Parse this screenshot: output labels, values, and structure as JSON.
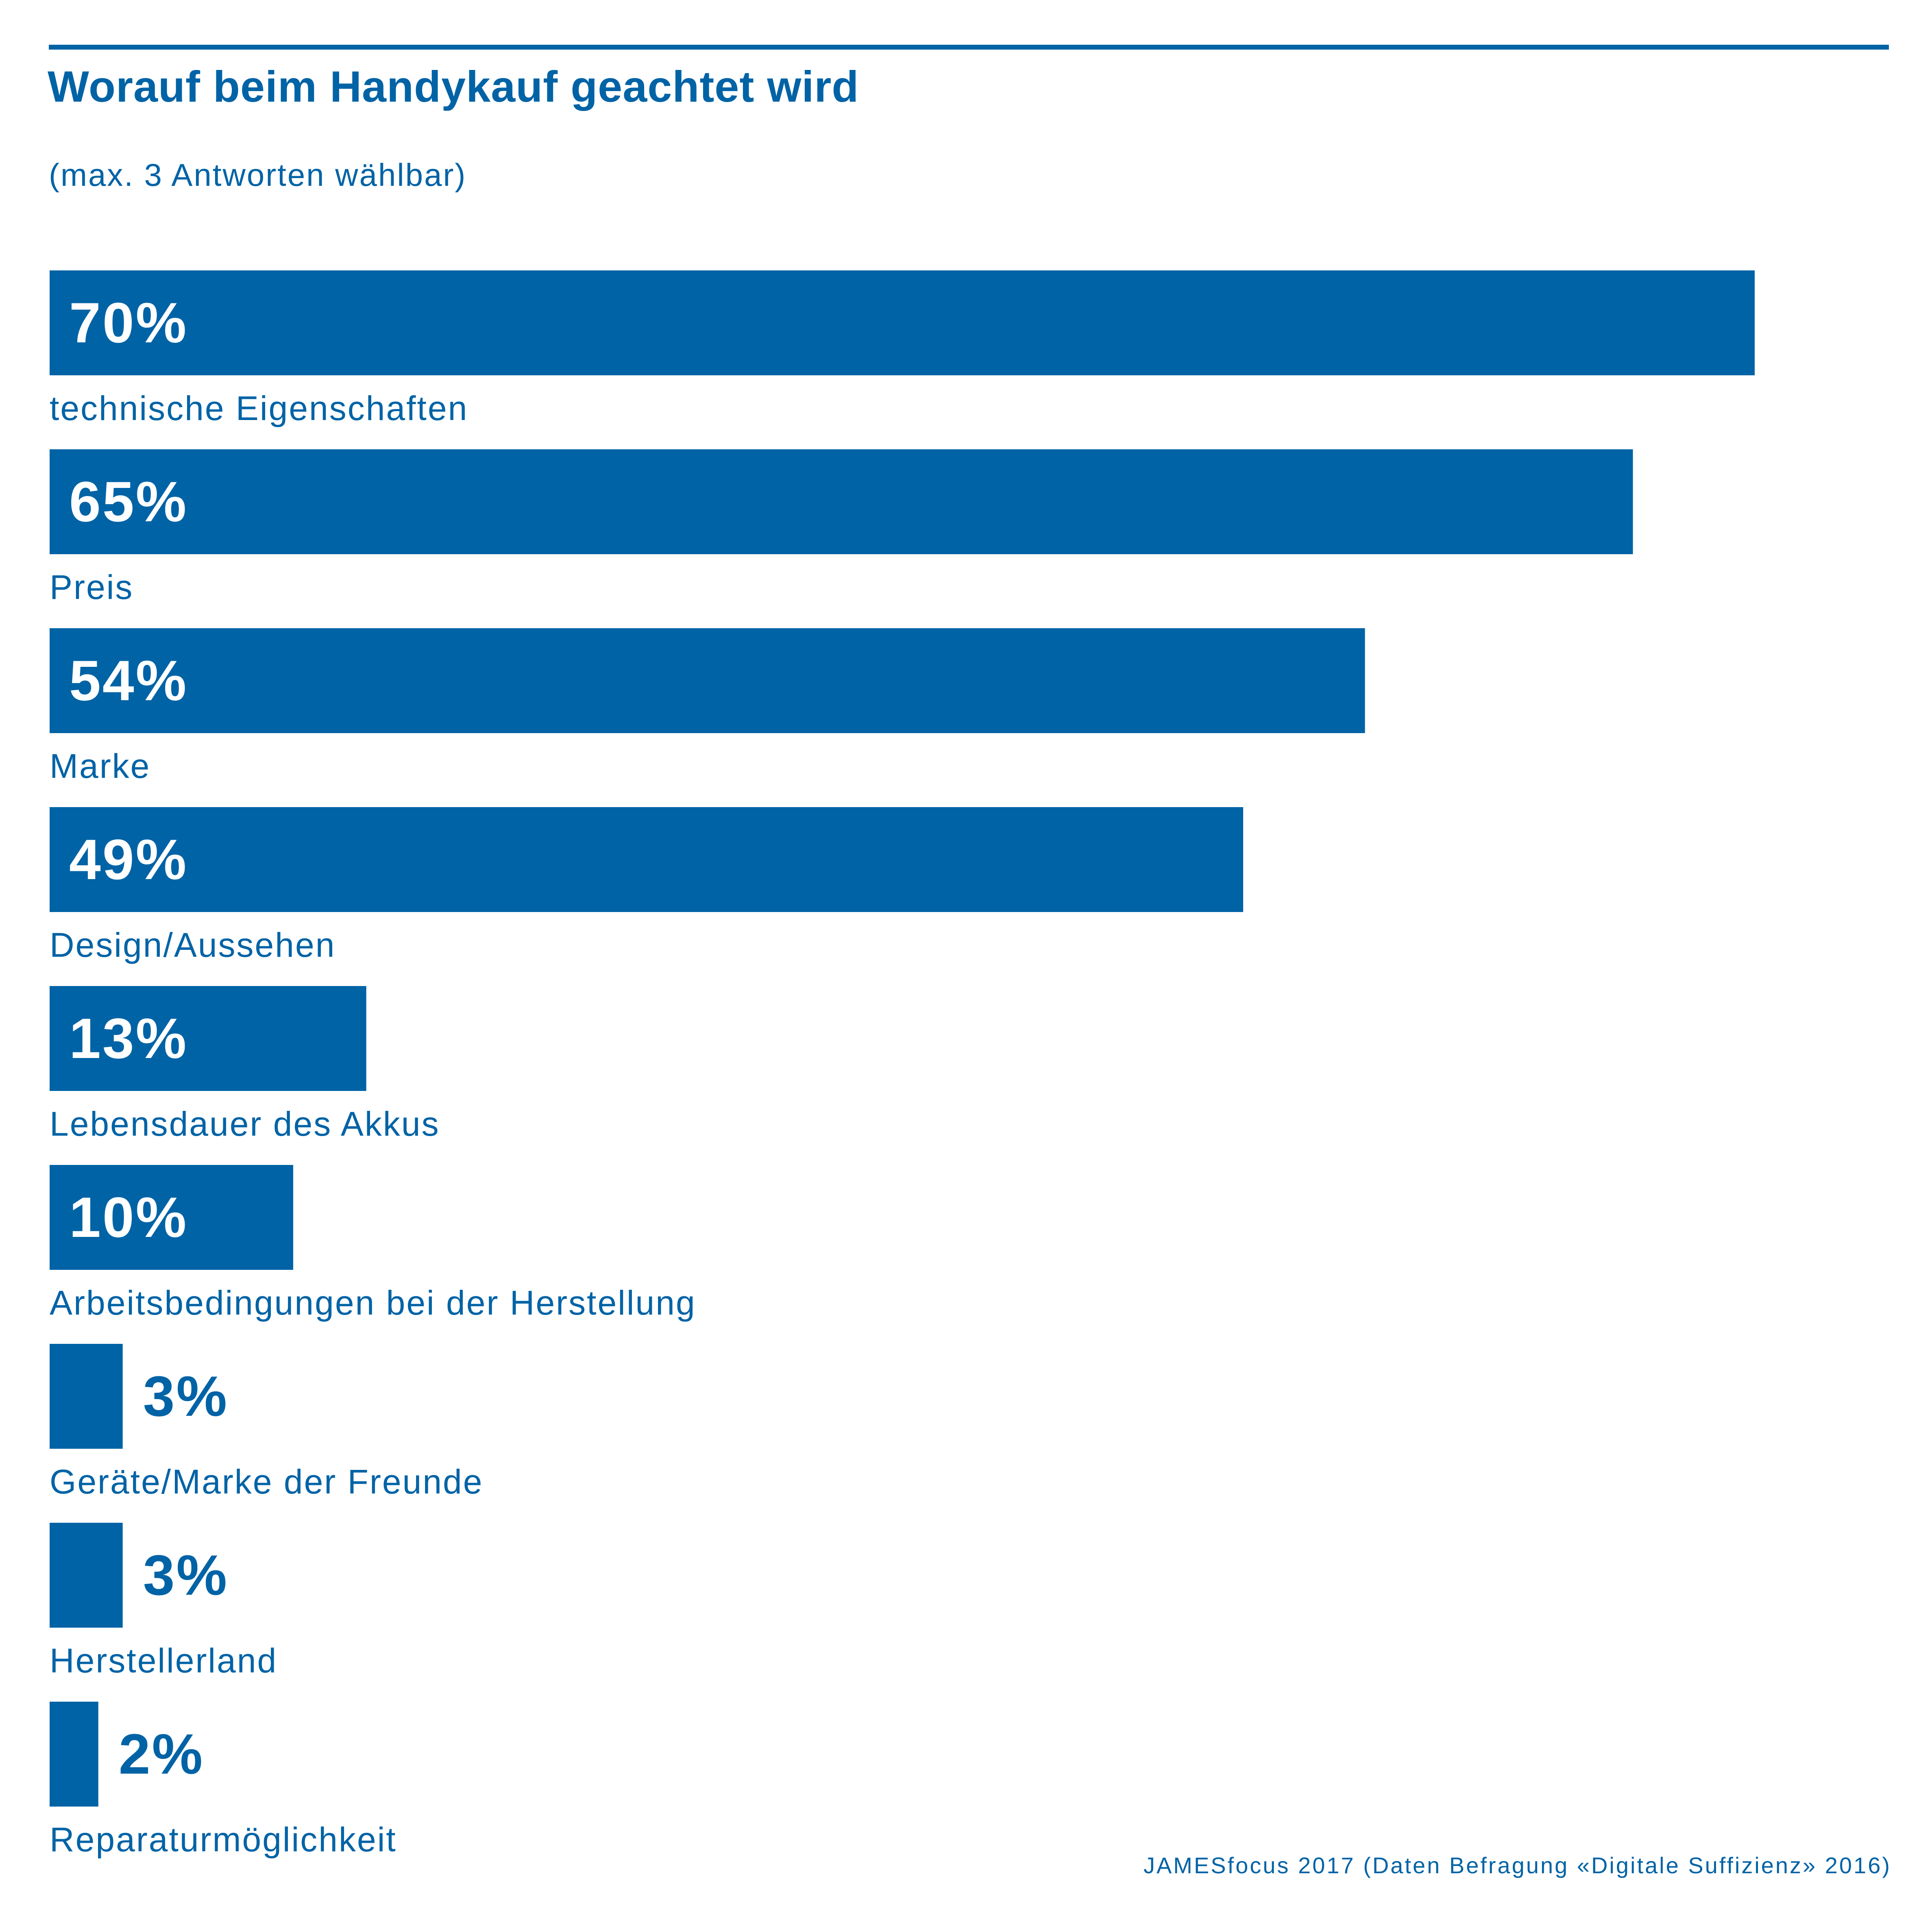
{
  "chart_data": {
    "type": "bar",
    "orientation": "horizontal",
    "title": "Worauf beim Handykauf geachtet wird",
    "subtitle": "(max. 3 Antworten wählbar)",
    "categories": [
      "technische Eigenschaften",
      "Preis",
      "Marke",
      "Design/Aussehen",
      "Lebensdauer des Akkus",
      "Arbeitsbedingungen bei der Herstellung",
      "Geräte/Marke der Freunde",
      "Herstellerland",
      "Reparaturmöglichkeit"
    ],
    "values": [
      70,
      65,
      54,
      49,
      13,
      10,
      3,
      3,
      2
    ],
    "value_labels": [
      "70%",
      "65%",
      "54%",
      "49%",
      "13%",
      "10%",
      "3%",
      "3%",
      "2%"
    ],
    "unit": "%",
    "xlim": [
      0,
      100
    ],
    "grid": false,
    "legend": "none",
    "bar_color": "#0063a6",
    "label_color": "#0063a6",
    "inside_label_color": "#ffffff"
  },
  "source": "JAMESfocus 2017 (Daten Befragung «Digitale Suffizienz» 2016)"
}
